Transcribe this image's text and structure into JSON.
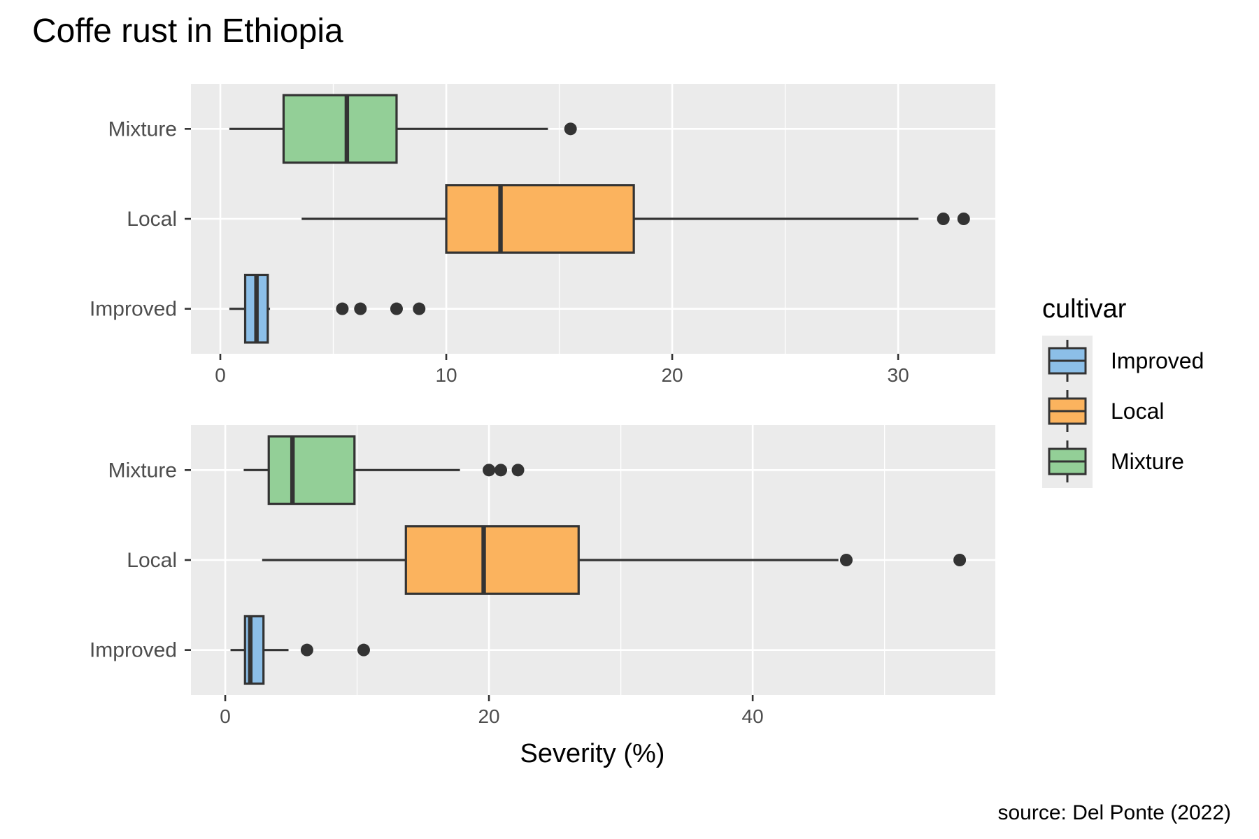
{
  "title": "Coffe rust in Ethiopia",
  "caption": "source: Del Ponte (2022)",
  "legend": {
    "title": "cultivar",
    "entries": [
      "Improved",
      "Local",
      "Mixture"
    ]
  },
  "colors": {
    "Improved": "#8cbfe8",
    "Local": "#fbb35e",
    "Mixture": "#93cf97",
    "panel_bg": "#ebebeb",
    "grid": "#ffffff",
    "box_line": "#333333"
  },
  "chart_data": [
    {
      "type": "boxplot",
      "orientation": "horizontal",
      "categories": [
        "Improved",
        "Local",
        "Mixture"
      ],
      "xlim": [
        -1.3,
        34.3
      ],
      "xticks": [
        0,
        10,
        20,
        30
      ],
      "xlabel": "",
      "boxes": [
        {
          "name": "Improved",
          "whisker_low": 0.4,
          "q1": 1.1,
          "median": 1.6,
          "q3": 2.1,
          "whisker_high": 2.2,
          "outliers": [
            5.4,
            6.2,
            7.8,
            8.8
          ]
        },
        {
          "name": "Local",
          "whisker_low": 3.6,
          "q1": 10.0,
          "median": 12.4,
          "q3": 18.3,
          "whisker_high": 30.9,
          "outliers": [
            32.0,
            32.9
          ]
        },
        {
          "name": "Mixture",
          "whisker_low": 0.4,
          "q1": 2.8,
          "median": 5.6,
          "q3": 7.8,
          "whisker_high": 14.5,
          "outliers": [
            15.5
          ]
        }
      ]
    },
    {
      "type": "boxplot",
      "orientation": "horizontal",
      "categories": [
        "Improved",
        "Local",
        "Mixture"
      ],
      "xlim": [
        -2.6,
        58.4
      ],
      "xticks": [
        0,
        20,
        40
      ],
      "xlabel": "Severity (%)",
      "boxes": [
        {
          "name": "Improved",
          "whisker_low": 0.4,
          "q1": 1.5,
          "median": 1.9,
          "q3": 2.9,
          "whisker_high": 4.8,
          "outliers": [
            6.2,
            10.5
          ]
        },
        {
          "name": "Local",
          "whisker_low": 2.8,
          "q1": 13.7,
          "median": 19.6,
          "q3": 26.8,
          "whisker_high": 46.5,
          "outliers": [
            47.1,
            55.7
          ]
        },
        {
          "name": "Mixture",
          "whisker_low": 1.4,
          "q1": 3.3,
          "median": 5.1,
          "q3": 9.8,
          "whisker_high": 17.8,
          "outliers": [
            20.0,
            20.9,
            22.2
          ]
        }
      ]
    }
  ]
}
